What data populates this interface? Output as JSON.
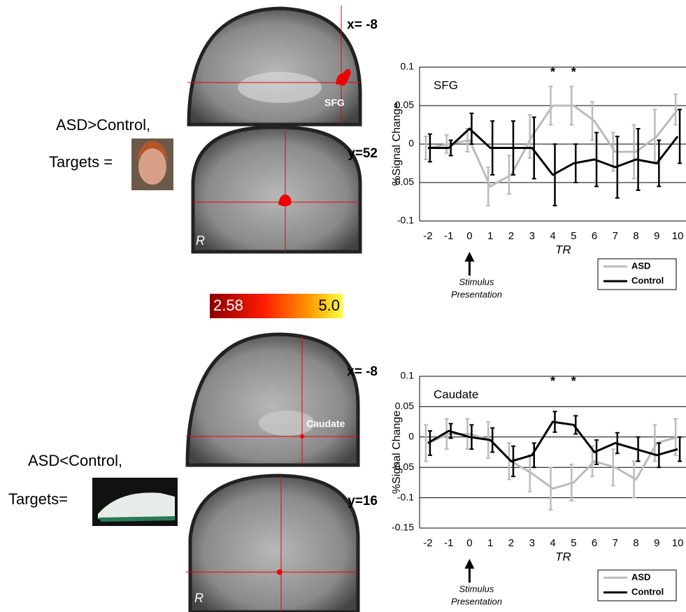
{
  "panels": [
    {
      "contrast": "ASD>Control,",
      "targets": "Targets =",
      "sagittal_label": "x= -8",
      "coronal_label": "y=52",
      "region_label": "SFG",
      "side_label": "R"
    },
    {
      "contrast": "ASD<Control,",
      "targets": "Targets=",
      "sagittal_label": "x= -8",
      "coronal_label": "y=16",
      "region_label": "Caudate",
      "side_label": "R"
    }
  ],
  "colorbar": {
    "labels": [
      "2.58",
      "5.0"
    ]
  },
  "chart_data": [
    {
      "type": "line",
      "title": "SFG",
      "ylabel": "%Signal Change",
      "xlabel": "TR",
      "annotation": [
        "Stimulus",
        "Presentation"
      ],
      "x": [
        -2,
        -1,
        0,
        1,
        2,
        3,
        4,
        5,
        6,
        7,
        8,
        9,
        10
      ],
      "xlim": [
        -2.4,
        10.4
      ],
      "xticks": [
        -2,
        -1,
        0,
        1,
        2,
        3,
        4,
        5,
        6,
        7,
        8,
        9,
        10
      ],
      "ylim": [
        -0.1,
        0.1
      ],
      "yticks": [
        -0.1,
        -0.05,
        0,
        0.05,
        0.1
      ],
      "significance": [
        {
          "x": 4,
          "label": "*"
        },
        {
          "x": 5,
          "label": "*"
        }
      ],
      "series": [
        {
          "name": "ASD",
          "color": "#bbbbbb",
          "values": [
            -0.005,
            0,
            0.005,
            -0.055,
            -0.04,
            0.01,
            0.05,
            0.05,
            0.03,
            -0.01,
            -0.01,
            0.01,
            0.045
          ],
          "errors": [
            0.015,
            0.012,
            0.015,
            0.025,
            0.025,
            0.028,
            0.025,
            0.025,
            0.025,
            0.025,
            0.035,
            0.035,
            0.02
          ]
        },
        {
          "name": "Control",
          "color": "#000000",
          "values": [
            -0.005,
            -0.005,
            0.02,
            -0.005,
            -0.005,
            -0.005,
            -0.04,
            -0.025,
            -0.02,
            -0.03,
            -0.02,
            -0.025,
            0.01
          ],
          "errors": [
            0.018,
            0.01,
            0.02,
            0.035,
            0.035,
            0.04,
            0.04,
            0.025,
            0.035,
            0.04,
            0.04,
            0.03,
            0.035
          ]
        }
      ]
    },
    {
      "type": "line",
      "title": "Caudate",
      "ylabel": "%Signal Change",
      "xlabel": "TR",
      "annotation": [
        "Stimulus",
        "Presentation"
      ],
      "x": [
        -2,
        -1,
        0,
        1,
        2,
        3,
        4,
        5,
        6,
        7,
        8,
        9,
        10
      ],
      "xlim": [
        -2.4,
        10.4
      ],
      "xticks": [
        -2,
        -1,
        0,
        1,
        2,
        3,
        4,
        5,
        6,
        7,
        8,
        9,
        10
      ],
      "ylim": [
        -0.15,
        0.1
      ],
      "yticks": [
        -0.15,
        -0.1,
        -0.05,
        0,
        0.05,
        0.1
      ],
      "significance": [
        {
          "x": 4,
          "label": "*"
        },
        {
          "x": 5,
          "label": "*"
        }
      ],
      "series": [
        {
          "name": "ASD",
          "color": "#bbbbbb",
          "values": [
            -0.01,
            0.005,
            0.005,
            -0.005,
            -0.04,
            -0.06,
            -0.085,
            -0.075,
            -0.04,
            -0.05,
            -0.07,
            -0.01,
            0
          ],
          "errors": [
            0.03,
            0.025,
            0.025,
            0.03,
            0.03,
            0.03,
            0.035,
            0.03,
            0.025,
            0.03,
            0.03,
            0.03,
            0.03
          ]
        },
        {
          "name": "Control",
          "color": "#000000",
          "values": [
            -0.01,
            0.01,
            0,
            -0.005,
            -0.04,
            -0.03,
            0.025,
            0.02,
            -0.025,
            -0.01,
            -0.02,
            -0.03,
            -0.02
          ],
          "errors": [
            0.02,
            0.012,
            0.02,
            0.02,
            0.025,
            0.02,
            0.017,
            0.015,
            0.02,
            0.017,
            0.02,
            0.02,
            0.02
          ]
        }
      ]
    }
  ]
}
